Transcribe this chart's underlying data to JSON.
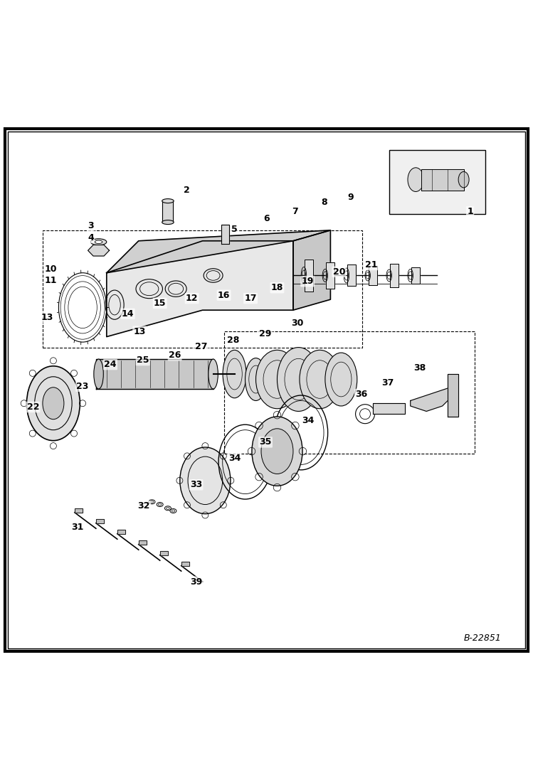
{
  "background_color": "#ffffff",
  "border_color": "#000000",
  "figure_code": "B-22851",
  "line_color": "#000000",
  "text_color": "#000000",
  "font_size": 9,
  "label_font_size": 9
}
